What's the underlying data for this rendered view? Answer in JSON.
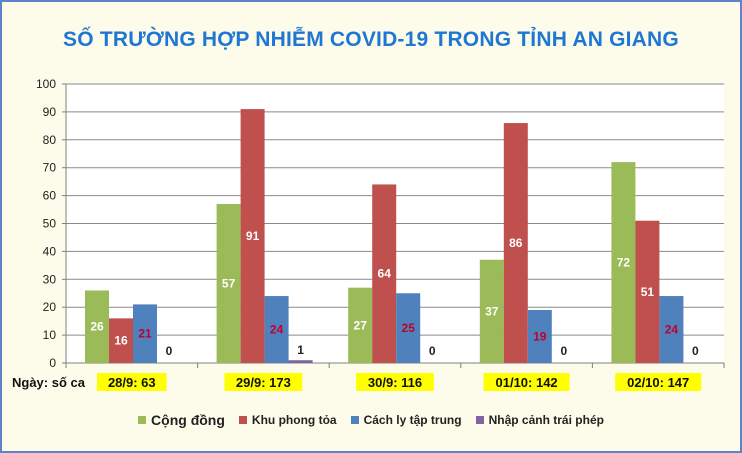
{
  "chart_data": {
    "type": "bar",
    "title": "SỐ TRƯỜNG HỢP NHIỄM COVID-19 TRONG TỈNH AN GIANG",
    "axis_label": "Ngày: số ca",
    "categories": [
      "28/9: 63",
      "29/9: 173",
      "30/9: 116",
      "01/10: 142",
      "02/10: 147"
    ],
    "series": [
      {
        "name": "Cộng đồng",
        "color": "#9BBB59",
        "label_color": "#FFFFFF",
        "values": [
          26,
          57,
          27,
          37,
          72
        ]
      },
      {
        "name": "Khu phong tỏa",
        "color": "#C0504D",
        "label_color": "#FFFFFF",
        "values": [
          16,
          91,
          64,
          86,
          51
        ]
      },
      {
        "name": "Cách ly tập trung",
        "color": "#4F81BD",
        "label_color": "#C0002A",
        "values": [
          21,
          24,
          25,
          19,
          24
        ]
      },
      {
        "name": "Nhập cảnh trái phép",
        "color": "#8064A2",
        "label_color": "#222222",
        "values": [
          0,
          1,
          0,
          0,
          0
        ]
      }
    ],
    "y_ticks": [
      "0",
      "10",
      "20",
      "30",
      "40",
      "50",
      "60",
      "70",
      "80",
      "90",
      "100"
    ],
    "ylim": [
      0,
      100
    ],
    "grid": true,
    "legend_position": "bottom",
    "category_highlight_color": "#FFFF00"
  }
}
